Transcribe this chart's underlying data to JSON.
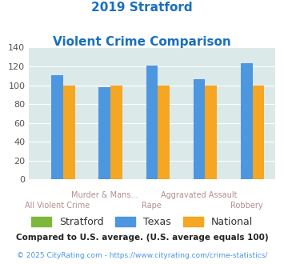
{
  "title_line1": "2019 Stratford",
  "title_line2": "Violent Crime Comparison",
  "stratford": [
    0,
    0,
    0,
    0,
    0
  ],
  "texas": [
    111,
    98,
    121,
    106,
    123
  ],
  "national": [
    100,
    100,
    100,
    100,
    100
  ],
  "color_stratford": "#7db83a",
  "color_texas": "#4d96e0",
  "color_national": "#f5a623",
  "color_title": "#1a6fbf",
  "color_bg": "#dce9e9",
  "color_xticklabel_top": "#b09090",
  "color_xticklabel_bot": "#b09090",
  "ylim": [
    0,
    140
  ],
  "yticks": [
    0,
    20,
    40,
    60,
    80,
    100,
    120,
    140
  ],
  "footnote1": "Compared to U.S. average. (U.S. average equals 100)",
  "footnote2": "© 2025 CityRating.com - https://www.cityrating.com/crime-statistics/",
  "footnote1_color": "#222222",
  "footnote2_color": "#4d96e0",
  "top_labels": {
    "1": "Murder & Mans...",
    "3": "Aggravated Assault"
  },
  "bot_labels": {
    "0": "All Violent Crime",
    "2": "Rape",
    "4": "Robbery"
  }
}
